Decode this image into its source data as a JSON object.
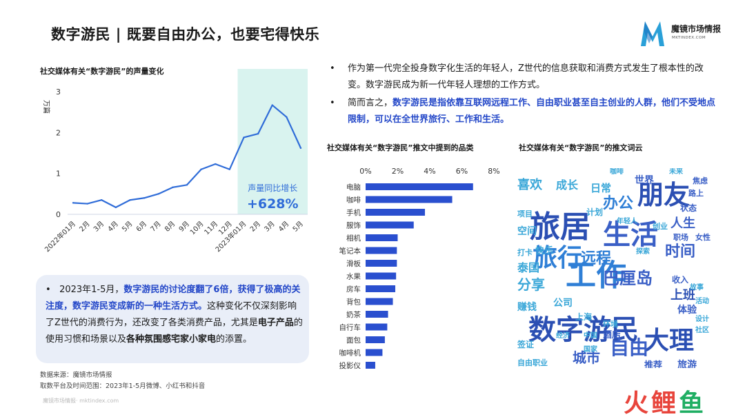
{
  "page_title": "数字游民 | 既要自由办公，也要宅得快乐",
  "logo": {
    "name": "魔镜市场情报",
    "sub": "MKTINDEX.COM"
  },
  "chart_data": [
    {
      "type": "line",
      "title": "社交媒体有关“数字游民”的声量变化",
      "ylabel": "万篇",
      "ylim": [
        0,
        3
      ],
      "yticks": [
        "0",
        "1",
        "2",
        "3"
      ],
      "x": [
        "2022年01月",
        "2月",
        "3月",
        "4月",
        "5月",
        "6月",
        "7月",
        "8月",
        "9月",
        "10月",
        "11月",
        "12月",
        "2023年01月",
        "2月",
        "3月",
        "4月",
        "5月"
      ],
      "values": [
        0.28,
        0.26,
        0.35,
        0.17,
        0.35,
        0.4,
        0.5,
        0.66,
        0.72,
        1.1,
        1.23,
        1.1,
        1.88,
        1.97,
        2.67,
        2.38,
        1.62
      ],
      "highlight": {
        "from": "2023年01月",
        "to": "5月",
        "label": "声量同比增长",
        "value": "+628%"
      },
      "color": "#2f6cd8",
      "highlight_color": "#d9f3ef"
    },
    {
      "type": "bar",
      "orientation": "horizontal",
      "title": "社交媒体有关“数字游民”推文中提到的品类",
      "xlim": [
        0,
        8
      ],
      "xticks": [
        "0%",
        "2%",
        "4%",
        "6%",
        "8%"
      ],
      "categories": [
        "电脑",
        "咖啡",
        "手机",
        "服饰",
        "相机",
        "笔记本",
        "滑板",
        "水果",
        "房车",
        "背包",
        "奶茶",
        "自行车",
        "面包",
        "咖啡机",
        "投影仪"
      ],
      "values": [
        6.7,
        5.4,
        3.7,
        3.0,
        2.0,
        1.95,
        1.95,
        1.9,
        1.85,
        1.7,
        1.4,
        1.35,
        1.2,
        1.05,
        0.6
      ],
      "color": "#2a4fcf"
    }
  ],
  "wordcloud": {
    "title": "社交媒体有关“数字游民”的推文词云",
    "words": [
      {
        "text": "数字游民",
        "color": "#2b4fb3"
      },
      {
        "text": "旅居",
        "color": "#2b4fb3"
      },
      {
        "text": "工作",
        "color": "#2f7fd6"
      },
      {
        "text": "生活",
        "color": "#3a5fc6"
      },
      {
        "text": "旅行",
        "color": "#2f7fd6"
      },
      {
        "text": "朋友",
        "color": "#2b4fb3"
      },
      {
        "text": "大理",
        "color": "#2b4fb3"
      },
      {
        "text": "巴厘岛",
        "color": "#3a5fc6"
      },
      {
        "text": "自由",
        "color": "#3a5fc6"
      },
      {
        "text": "时间",
        "color": "#3a5fc6"
      },
      {
        "text": "远程",
        "color": "#2f7fd6"
      },
      {
        "text": "喜欢",
        "color": "#3aa7d8"
      },
      {
        "text": "城市",
        "color": "#3a5fc6"
      },
      {
        "text": "办公",
        "color": "#2f7fd6"
      },
      {
        "text": "分享",
        "color": "#3aa7d8"
      },
      {
        "text": "上班",
        "color": "#2b4fb3"
      },
      {
        "text": "旅游",
        "color": "#3a5fc6"
      },
      {
        "text": "世界",
        "color": "#3a5fc6"
      },
      {
        "text": "体验",
        "color": "#3a5fc6"
      },
      {
        "text": "人生",
        "color": "#3a5fc6"
      },
      {
        "text": "成长",
        "color": "#3aa7d8"
      },
      {
        "text": "日常",
        "color": "#3aa7d8"
      },
      {
        "text": "泰国",
        "color": "#3aa7d8"
      },
      {
        "text": "酒店",
        "color": "#3a5fc6"
      },
      {
        "text": "推荐",
        "color": "#3a5fc6"
      },
      {
        "text": "公司",
        "color": "#3aa7d8"
      },
      {
        "text": "赚钱",
        "color": "#3aa7d8"
      },
      {
        "text": "自由职业",
        "color": "#3aa7d8"
      },
      {
        "text": "空间",
        "color": "#3aa7d8"
      },
      {
        "text": "计划",
        "color": "#3aa7d8"
      },
      {
        "text": "收入",
        "color": "#3a5fc6"
      },
      {
        "text": "职场",
        "color": "#3a5fc6"
      },
      {
        "text": "女性",
        "color": "#3a5fc6"
      },
      {
        "text": "焦虑",
        "color": "#3a5fc6"
      },
      {
        "text": "路上",
        "color": "#3a5fc6"
      },
      {
        "text": "状态",
        "color": "#3a5fc6"
      },
      {
        "text": "快乐",
        "color": "#3aa7d8"
      },
      {
        "text": "签证",
        "color": "#3aa7d8"
      },
      {
        "text": "上海",
        "color": "#3aa7d8"
      },
      {
        "text": "环境",
        "color": "#3aa7d8"
      },
      {
        "text": "项目",
        "color": "#3aa7d8"
      },
      {
        "text": "打卡",
        "color": "#3aa7d8"
      },
      {
        "text": "未来",
        "color": "#3aa7d8"
      },
      {
        "text": "咖啡",
        "color": "#3aa7d8"
      },
      {
        "text": "探索",
        "color": "#3aa7d8"
      },
      {
        "text": "创业",
        "color": "#3aa7d8"
      },
      {
        "text": "年轻人",
        "color": "#3aa7d8"
      },
      {
        "text": "中国",
        "color": "#3aa7d8"
      },
      {
        "text": "国家",
        "color": "#3aa7d8"
      },
      {
        "text": "设计",
        "color": "#3aa7d8"
      },
      {
        "text": "社区",
        "color": "#3aa7d8"
      },
      {
        "text": "经济",
        "color": "#3aa7d8"
      },
      {
        "text": "故事",
        "color": "#3aa7d8"
      },
      {
        "text": "活动",
        "color": "#3aa7d8"
      }
    ]
  },
  "bullets": [
    {
      "text": "作为第一代完全投身数字化生活的年轻人，Z世代的信息获取和消费方式发生了根本性的改变。数字游民成为新一代年轻人理想的工作方式。",
      "highlight": ""
    },
    {
      "text": "简而言之，",
      "highlight": "数字游民是指依靠互联网远程工作、自由职业甚至自主创业的人群，他们不受地点限制，可以在全世界旅行、工作和生活。"
    }
  ],
  "note": {
    "p1": "2023年1-5月，",
    "h1": "数字游民的讨论度翻了6倍，获得了极高的关注度，数字游民变成新的一种生活方式。",
    "p2": "这种变化不仅深刻影响了Z世代的消费行为，还改变了各类消费产品，尤其是",
    "b1": "电子产品",
    "p3": "的使用习惯和场景以及",
    "b2": "各种氛围感宅家小家电",
    "p4": "的添置。"
  },
  "source": {
    "line1": "数据来源：魔镜市场情报",
    "line2": "取数平台及时间范围：2023年1-5月微博、小红书和抖音"
  },
  "footer_left": "魔镜市场情报· mktindex.com",
  "watermark": {
    "text": "火鲤鱼",
    "colors": [
      "#e8453c",
      "#e8453c",
      "#1fae63"
    ]
  }
}
